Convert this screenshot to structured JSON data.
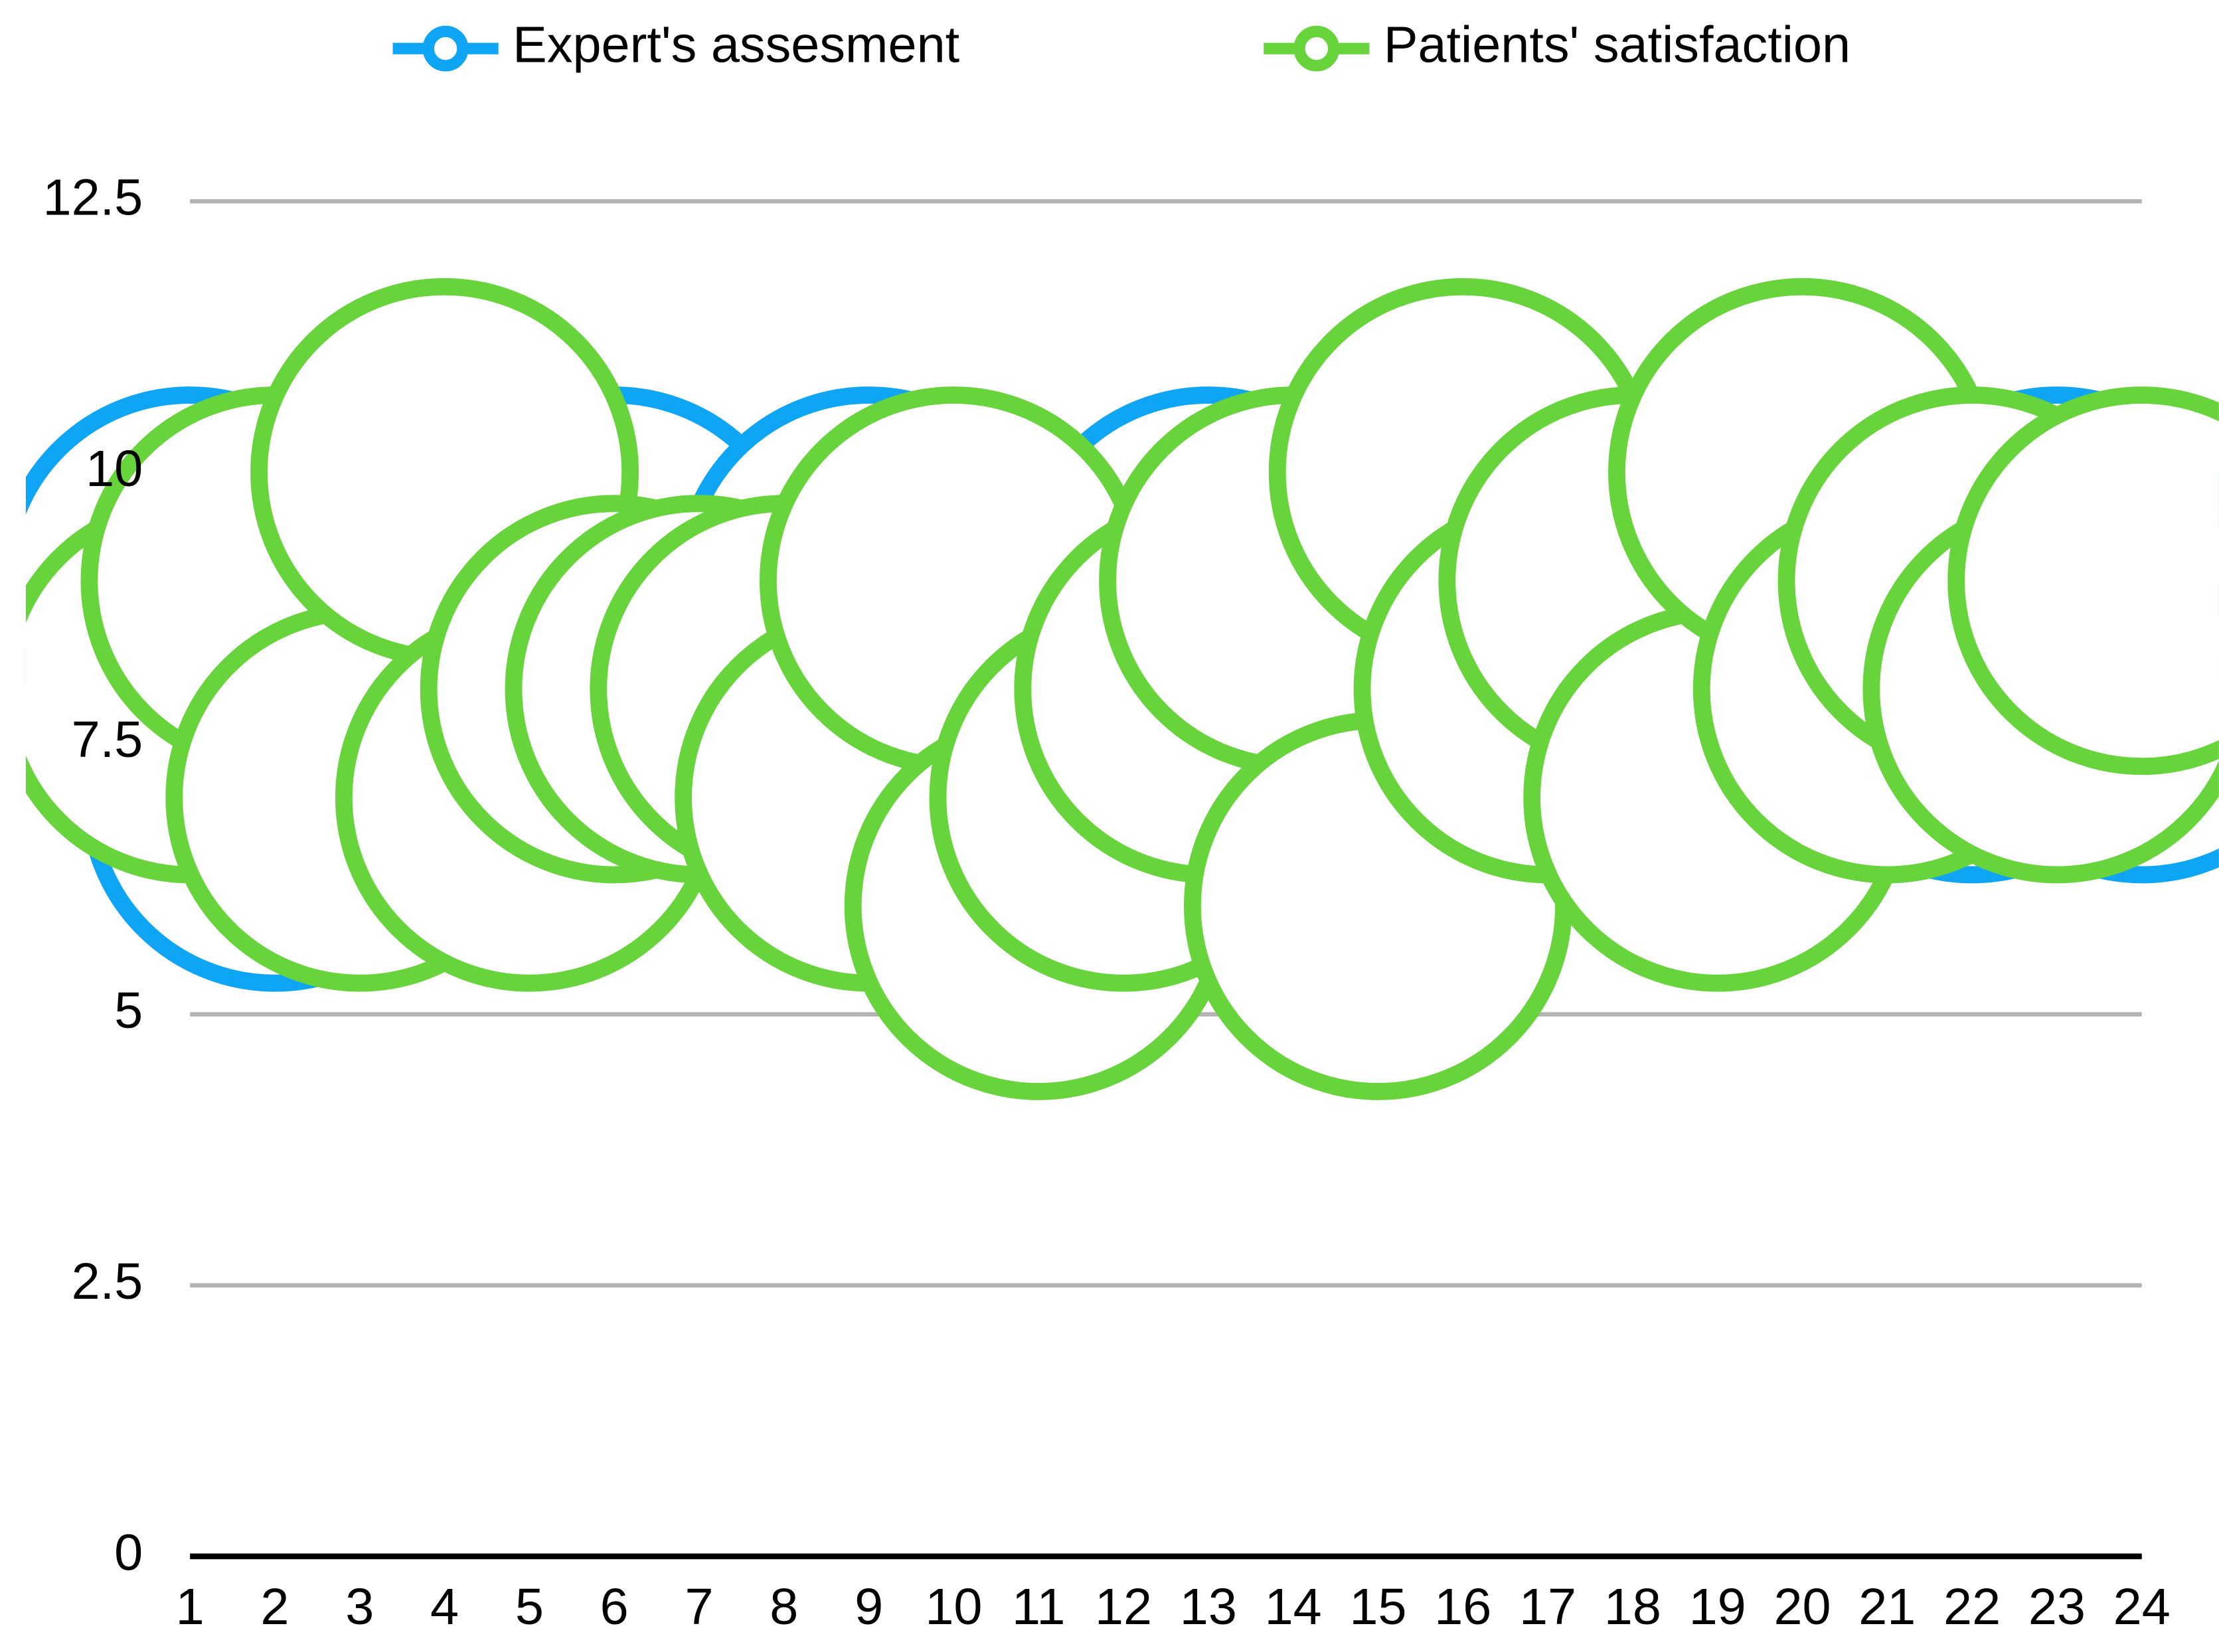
{
  "chart_data": {
    "type": "line",
    "categories": [
      "1",
      "2",
      "3",
      "4",
      "5",
      "6",
      "7",
      "8",
      "9",
      "10",
      "11",
      "12",
      "13",
      "14",
      "15",
      "16",
      "17",
      "18",
      "19",
      "20",
      "21",
      "22",
      "23",
      "24"
    ],
    "series": [
      {
        "name": "Expert's assesment",
        "color": "#0ea5f5",
        "values": [
          9,
          7,
          8,
          8,
          8,
          9,
          8,
          8,
          9,
          8,
          8,
          8,
          9,
          8,
          8,
          8,
          8,
          8,
          8,
          8,
          8,
          8,
          9,
          8
        ]
      },
      {
        "name": "Patients' satisfaction",
        "color": "#66d43a",
        "values": [
          8,
          9,
          7,
          10,
          7,
          8,
          8,
          8,
          7,
          9,
          6,
          7,
          8,
          9,
          6,
          10,
          8,
          9,
          7,
          10,
          8,
          9,
          8,
          9
        ]
      }
    ],
    "ylim": [
      0,
      12.5
    ],
    "yticks": [
      0,
      2.5,
      5,
      7.5,
      10,
      12.5
    ],
    "grid": true
  }
}
